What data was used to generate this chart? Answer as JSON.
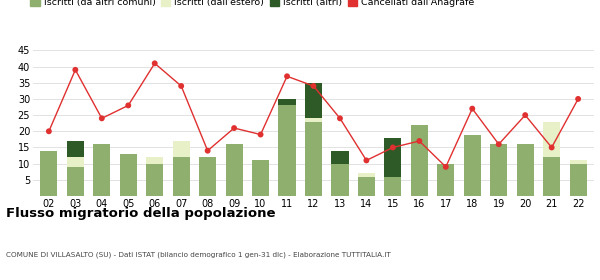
{
  "years": [
    "02",
    "03",
    "04",
    "05",
    "06",
    "07",
    "08",
    "09",
    "10",
    "11",
    "12",
    "13",
    "14",
    "15",
    "16",
    "17",
    "18",
    "19",
    "20",
    "21",
    "22"
  ],
  "iscritti_comuni": [
    14,
    9,
    16,
    13,
    10,
    12,
    12,
    16,
    11,
    28,
    23,
    10,
    6,
    6,
    22,
    10,
    19,
    16,
    16,
    12,
    10
  ],
  "iscritti_estero": [
    0,
    3,
    0,
    0,
    2,
    5,
    0,
    0,
    0,
    0,
    1,
    0,
    1,
    0,
    0,
    0,
    0,
    0,
    0,
    11,
    1
  ],
  "iscritti_altri": [
    0,
    5,
    0,
    0,
    0,
    0,
    0,
    0,
    0,
    2,
    11,
    4,
    0,
    12,
    0,
    0,
    0,
    0,
    0,
    0,
    0
  ],
  "cancellati": [
    20,
    39,
    24,
    28,
    41,
    34,
    14,
    21,
    19,
    37,
    34,
    24,
    11,
    15,
    17,
    9,
    27,
    16,
    25,
    15,
    30
  ],
  "color_comuni": "#8faf6e",
  "color_estero": "#e8f0c8",
  "color_altri": "#2d5a27",
  "color_cancellati": "#e03030",
  "color_line": "#e03030",
  "ylim": [
    0,
    45
  ],
  "yticks": [
    5,
    10,
    15,
    20,
    25,
    30,
    35,
    40,
    45
  ],
  "title": "Flusso migratorio della popolazione",
  "subtitle": "COMUNE DI VILLASALTO (SU) - Dati ISTAT (bilancio demografico 1 gen-31 dic) - Elaborazione TUTTITALIA.IT",
  "legend_labels": [
    "Iscritti (da altri comuni)",
    "Iscritti (dall'estero)",
    "Iscritti (altri)",
    "Cancellati dall'Anagrafe"
  ],
  "bg_color": "#ffffff",
  "grid_color": "#dddddd"
}
